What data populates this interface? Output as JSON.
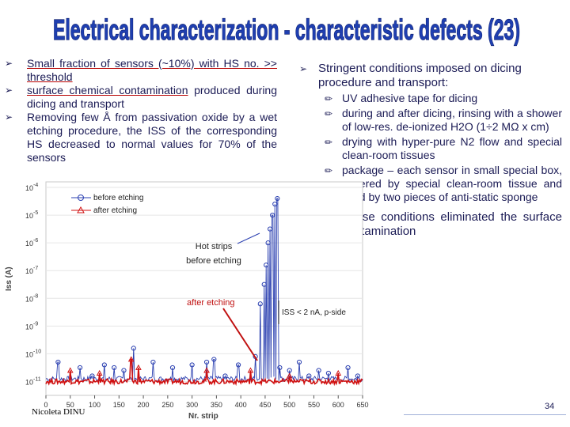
{
  "title": "Electrical characterization - characteristic defects (23)",
  "left_bullets": [
    {
      "text": "Small fraction of sensors (~10%) with HS no. >> threshold",
      "underlined": true
    },
    {
      "text": "surface chemical contamination produced during dicing and transport",
      "underlined_part": "surface chemical contamination",
      "rest": " produced during dicing and transport"
    },
    {
      "text": "Removing few Å from passivation oxide by a wet etching procedure, the ISS of the corresponding HS decreased to normal values for 70% of the sensors"
    }
  ],
  "right": {
    "heading": "Stringent conditions imposed on dicing procedure and transport:",
    "items": [
      "UV adhesive tape for dicing",
      "during and after dicing, rinsing with a shower of low-res. de-ionized H2O (1÷2 MΩ x cm)",
      "drying with hyper-pure N2 flow and special clean-room tissues",
      "package – each sensor in small special box, covered by special clean-room tissue and fixed by two pieces of anti-static sponge"
    ],
    "conclusion": "These conditions eliminated the surface contamination"
  },
  "chart_data": {
    "type": "scatter",
    "title": "",
    "xlabel": "Nr. strip",
    "ylabel": "Iss (A)",
    "xlim": [
      0,
      650
    ],
    "ylog": true,
    "ylim_exp": [
      -11.5,
      -3.8
    ],
    "x_ticks": [
      0,
      50,
      100,
      150,
      200,
      250,
      300,
      350,
      400,
      450,
      500,
      550,
      600,
      650
    ],
    "y_tick_exps": [
      -11,
      -10,
      -9,
      -8,
      -7,
      -6,
      -5,
      -4
    ],
    "legend": [
      "before etching",
      "after etching"
    ],
    "legend_position": "top-left",
    "series": [
      {
        "name": "before etching",
        "color": "#2a3fb0",
        "baseline_exp": -10.9,
        "spikes": [
          [
            25,
            -10.3
          ],
          [
            70,
            -10.5
          ],
          [
            95,
            -10.8
          ],
          [
            120,
            -10.4
          ],
          [
            140,
            -10.5
          ],
          [
            160,
            -10.6
          ],
          [
            180,
            -9.8
          ],
          [
            220,
            -10.3
          ],
          [
            260,
            -10.5
          ],
          [
            300,
            -10.4
          ],
          [
            330,
            -10.3
          ],
          [
            345,
            -10.2
          ],
          [
            368,
            -10.8
          ],
          [
            395,
            -10.4
          ],
          [
            430,
            -10.1
          ],
          [
            440,
            -8.2
          ],
          [
            448,
            -7.5
          ],
          [
            452,
            -6.8
          ],
          [
            456,
            -6.0
          ],
          [
            460,
            -5.5
          ],
          [
            465,
            -5.0
          ],
          [
            470,
            -4.6
          ],
          [
            475,
            -4.4
          ],
          [
            480,
            -10.5
          ],
          [
            500,
            -10.6
          ],
          [
            520,
            -10.3
          ],
          [
            540,
            -10.8
          ],
          [
            560,
            -10.6
          ],
          [
            580,
            -10.7
          ],
          [
            620,
            -10.5
          ],
          [
            640,
            -10.8
          ]
        ]
      },
      {
        "name": "after etching",
        "color": "#d01010",
        "baseline_exp": -11.0,
        "spikes": [
          [
            50,
            -10.6
          ],
          [
            110,
            -10.7
          ],
          [
            175,
            -10.2
          ],
          [
            190,
            -10.5
          ],
          [
            330,
            -10.6
          ],
          [
            420,
            -10.6
          ],
          [
            500,
            -10.8
          ],
          [
            600,
            -10.7
          ]
        ]
      }
    ],
    "annotations": {
      "hot_strips": "Hot strips before etching",
      "after_etching": "after etching",
      "iss_threshold": "ISS < 2 nA, p-side"
    }
  },
  "footer": {
    "author": "Nicoleta DINU",
    "page": "34"
  }
}
